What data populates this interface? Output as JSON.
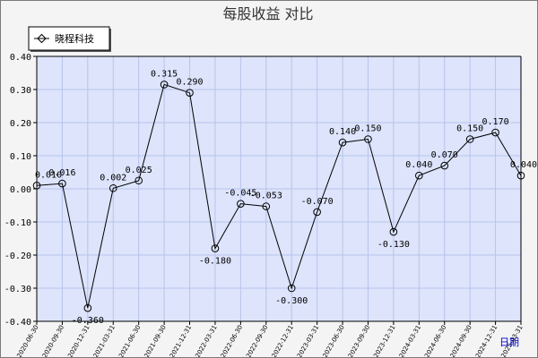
{
  "chart_data": {
    "type": "line",
    "title": "每股收益  对比",
    "xlabel": "日期",
    "ylabel": "",
    "ylim": [
      -0.4,
      0.4
    ],
    "yticks": [
      "0.40",
      "0.30",
      "0.20",
      "0.10",
      "0.00",
      "-0.10",
      "-0.20",
      "-0.30",
      "-0.40"
    ],
    "grid": true,
    "legend_position": "top-left",
    "categories": [
      "2020-06-30",
      "2020-09-30",
      "2020-12-31",
      "2021-03-31",
      "2021-06-30",
      "2021-09-30",
      "2021-12-31",
      "2022-03-31",
      "2022-06-30",
      "2022-09-30",
      "2022-12-31",
      "2023-03-31",
      "2023-06-30",
      "2023-09-30",
      "2023-12-31",
      "2024-03-31",
      "2024-06-30",
      "2024-09-30",
      "2024-12-31",
      "2025-03-31"
    ],
    "series": [
      {
        "name": "晓程科技",
        "color": "#000000",
        "values": [
          0.01,
          0.016,
          -0.36,
          0.002,
          0.025,
          0.315,
          0.29,
          -0.18,
          -0.045,
          -0.053,
          -0.3,
          -0.07,
          0.14,
          0.15,
          -0.13,
          0.04,
          0.07,
          0.15,
          0.17,
          0.04
        ],
        "labels": [
          "0.010",
          "0.016",
          "-0.360",
          "0.002",
          "0.025",
          "0.315",
          "0.290",
          "-0.180",
          "-0.045",
          "-0.053",
          "-0.300",
          "-0.070",
          "0.140",
          "0.150",
          "-0.130",
          "0.040",
          "0.070",
          "0.150",
          "0.170",
          "0.040"
        ]
      }
    ]
  },
  "colors": {
    "plot_background": "#dde4fb",
    "grid": "#b7c3ec",
    "line": "#000000",
    "axis_label": "#0000cc"
  }
}
